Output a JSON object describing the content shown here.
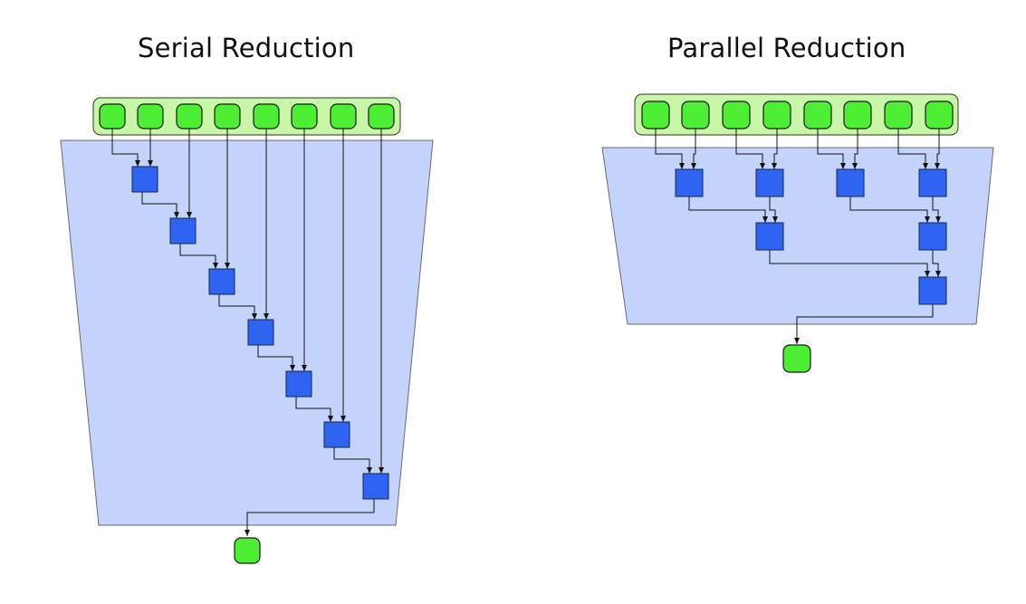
{
  "serial": {
    "title": "Serial Reduction"
  },
  "parallel": {
    "title": "Parallel Reduction"
  },
  "colors": {
    "input_node": "#4dee34",
    "operator_node": "#2f64f3",
    "funnel": "#c3d3fb",
    "input_bar": "#c9f7a8"
  }
}
